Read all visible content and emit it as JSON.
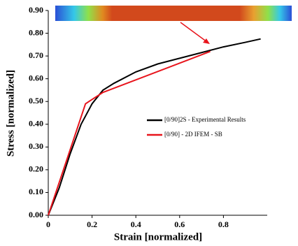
{
  "chart_data": {
    "type": "line",
    "xlabel": "Strain [normalized]",
    "ylabel": "Stress [normalized]",
    "xlim": [
      0,
      1
    ],
    "xticks": [
      0,
      0.2,
      0.4,
      0.6,
      0.8
    ],
    "ylim": [
      0,
      0.9
    ],
    "yticks": [
      {
        "value": 0,
        "label": "0.00"
      },
      {
        "value": 0.1,
        "label": "0.10"
      },
      {
        "value": 0.2,
        "label": "0.20"
      },
      {
        "value": 0.3,
        "label": "0.30"
      },
      {
        "value": 0.4,
        "label": "0.40"
      },
      {
        "value": 0.5,
        "label": "0.50"
      },
      {
        "value": 0.6,
        "label": "0.60"
      },
      {
        "value": 0.7,
        "label": "0.70"
      },
      {
        "value": 0.8,
        "label": "0.80"
      },
      {
        "value": 0.9,
        "label": "0.90"
      }
    ],
    "series": [
      {
        "name": "[0/90]2S - Experimental Results",
        "color": "#000000",
        "x": [
          0,
          0.05,
          0.1,
          0.15,
          0.2,
          0.25,
          0.3,
          0.4,
          0.5,
          0.6,
          0.7,
          0.8,
          0.9,
          0.97
        ],
        "values": [
          0,
          0.12,
          0.27,
          0.4,
          0.49,
          0.55,
          0.58,
          0.63,
          0.665,
          0.69,
          0.715,
          0.74,
          0.76,
          0.775
        ]
      },
      {
        "name": "[0/90] - 2D IFEM - SB",
        "color": "#e8141c",
        "x": [
          0,
          0.17,
          0.25,
          0.74
        ],
        "values": [
          0,
          0.49,
          0.54,
          0.72
        ]
      }
    ]
  }
}
